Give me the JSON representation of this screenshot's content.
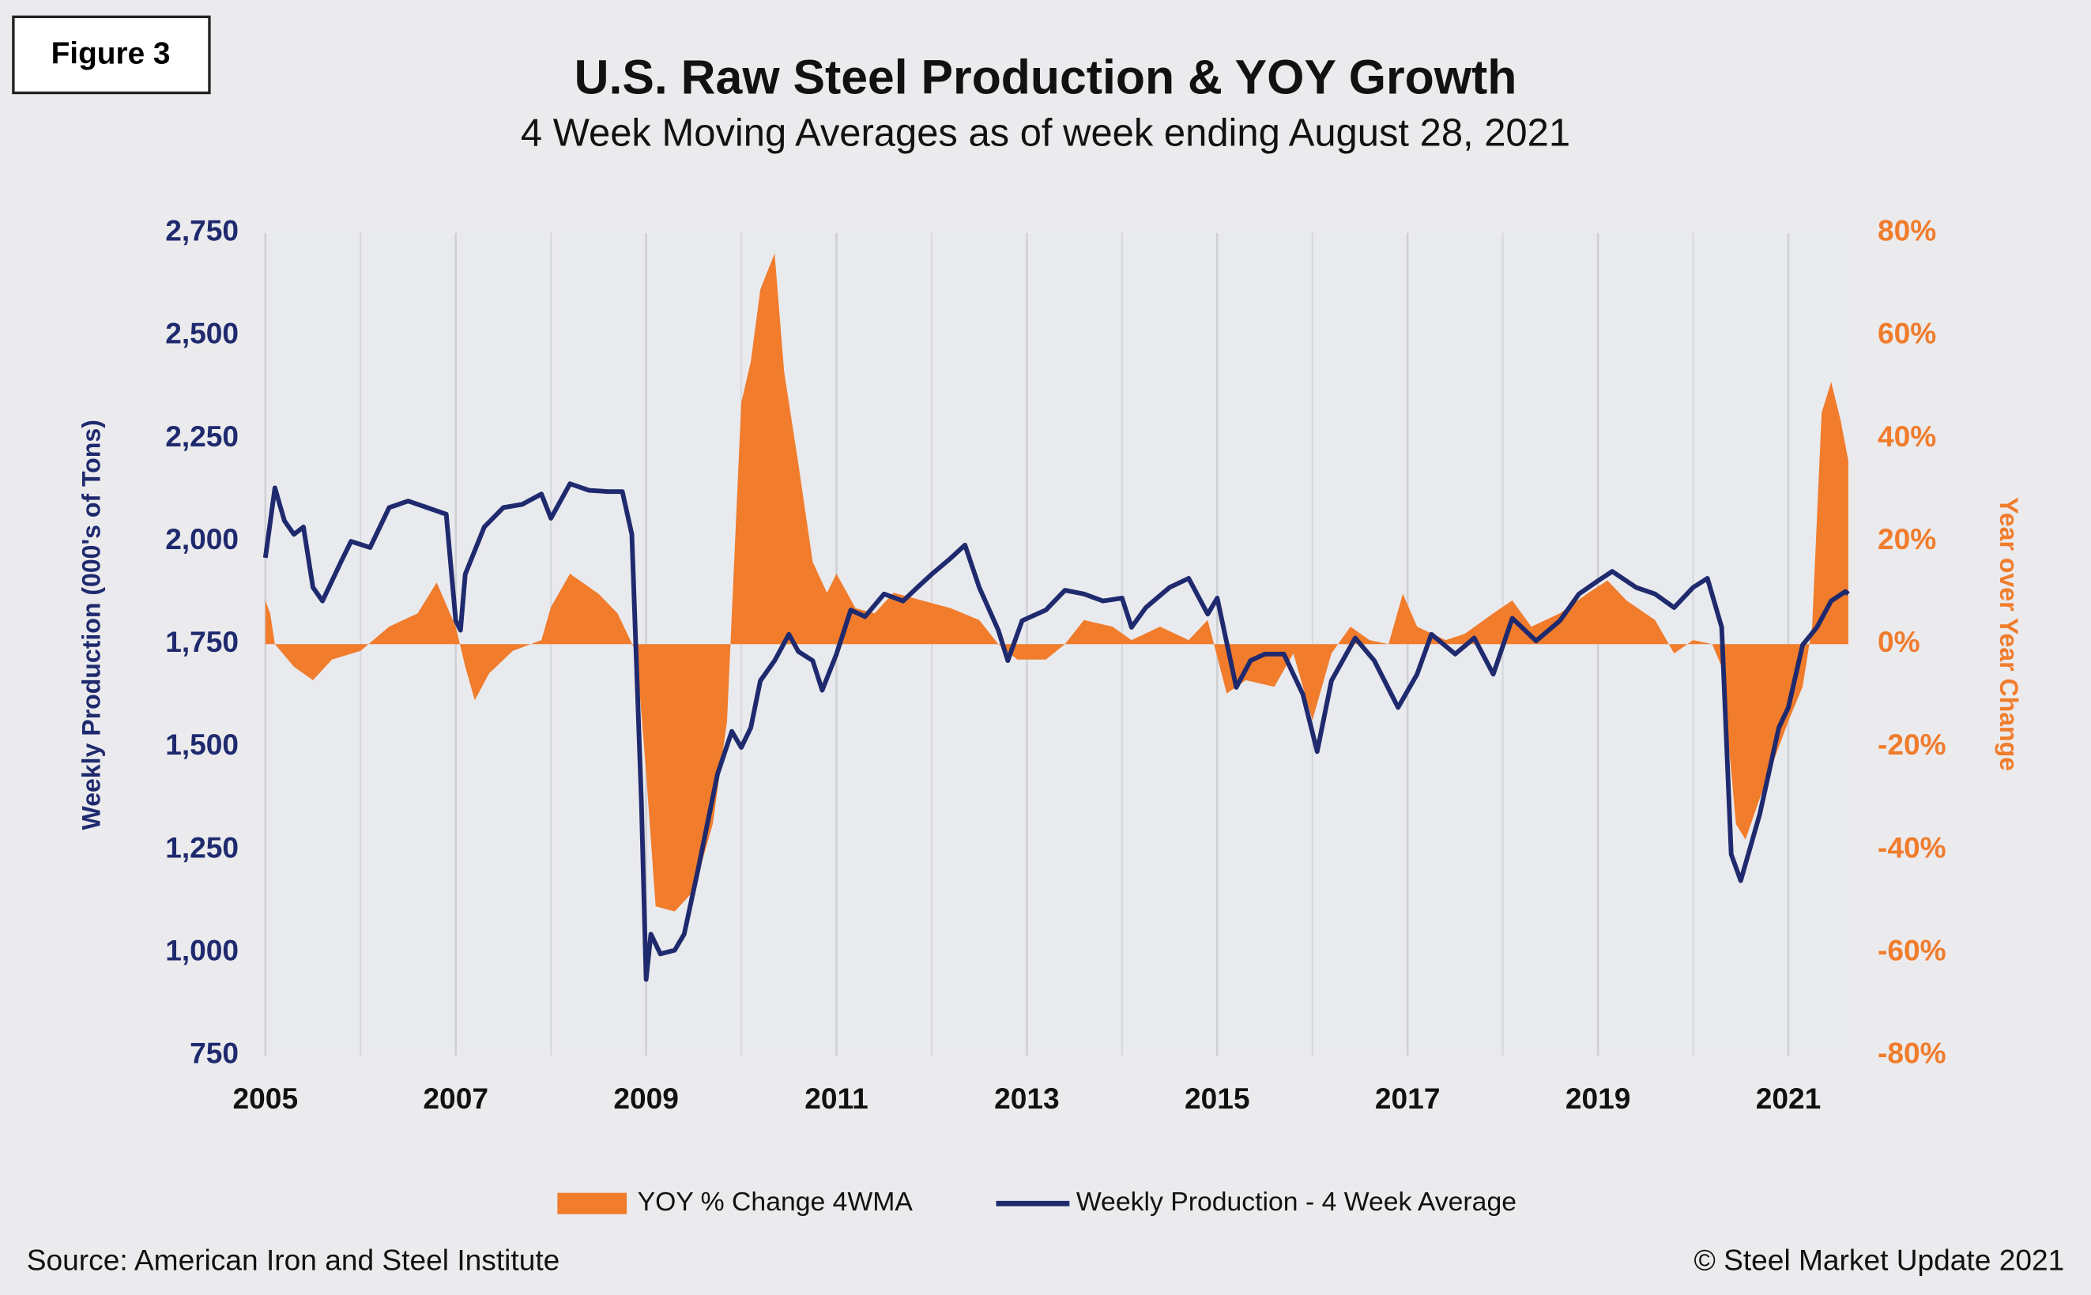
{
  "figure_label": "Figure 3",
  "chart_data": {
    "type": "area-line",
    "title": "U.S. Raw Steel Production & YOY Growth",
    "subtitle": "4 Week Moving Averages as of week ending August 28, 2021",
    "y_label": "Weekly Production (000's of Tons)",
    "y2_label": "Year over Year Change",
    "xlim": [
      2005,
      2021.63
    ],
    "xticks": [
      2005,
      2007,
      2009,
      2011,
      2013,
      2015,
      2017,
      2019,
      2021
    ],
    "ylim": [
      750,
      2750
    ],
    "yticks": [
      750,
      {
        "value": 1000,
        "label": "1,000"
      },
      {
        "value": 1250,
        "label": "1,250"
      },
      {
        "value": 1500,
        "label": "1,500"
      },
      {
        "value": 1750,
        "label": "1,750"
      },
      {
        "value": 2000,
        "label": "2,000"
      },
      {
        "value": 2250,
        "label": "2,250"
      },
      {
        "value": 2500,
        "label": "2,500"
      },
      {
        "value": 2750,
        "label": "2,750"
      }
    ],
    "y2lim": [
      -80,
      80
    ],
    "y2ticks": [
      {
        "value": -80,
        "label": "-80%"
      },
      {
        "value": -60,
        "label": "-60%"
      },
      {
        "value": -40,
        "label": "-40%"
      },
      {
        "value": -20,
        "label": "-20%"
      },
      {
        "value": 0,
        "label": "0%"
      },
      {
        "value": 20,
        "label": "20%"
      },
      {
        "value": 40,
        "label": "40%"
      },
      {
        "value": 60,
        "label": "60%"
      },
      {
        "value": 80,
        "label": "80%"
      }
    ],
    "grid": "x",
    "legend": "bottom",
    "series": [
      {
        "name": "YOY % Change 4WMA",
        "color": "#f07c2c",
        "axis": "y2",
        "kind": "area",
        "x": [
          2005,
          2005.05,
          2005.1,
          2005.3,
          2005.5,
          2005.7,
          2006.0,
          2006.3,
          2006.6,
          2006.8,
          2007.0,
          2007.1,
          2007.2,
          2007.35,
          2007.6,
          2007.9,
          2008.0,
          2008.2,
          2008.5,
          2008.7,
          2008.9,
          2009.0,
          2009.1,
          2009.3,
          2009.5,
          2009.7,
          2009.85,
          2010.0,
          2010.1,
          2010.2,
          2010.35,
          2010.45,
          2010.6,
          2010.75,
          2010.9,
          2011.0,
          2011.2,
          2011.4,
          2011.6,
          2011.9,
          2012.2,
          2012.5,
          2012.7,
          2012.9,
          2013.2,
          2013.4,
          2013.6,
          2013.9,
          2014.1,
          2014.4,
          2014.7,
          2014.9,
          2015.1,
          2015.3,
          2015.6,
          2015.8,
          2016.0,
          2016.2,
          2016.4,
          2016.6,
          2016.8,
          2016.95,
          2017.1,
          2017.4,
          2017.6,
          2017.9,
          2018.1,
          2018.3,
          2018.6,
          2018.9,
          2019.1,
          2019.3,
          2019.6,
          2019.8,
          2020.0,
          2020.2,
          2020.3,
          2020.45,
          2020.55,
          2020.7,
          2020.9,
          2021.0,
          2021.15,
          2021.25,
          2021.35,
          2021.45,
          2021.55,
          2021.63
        ],
        "values": [
          8.5,
          6,
          0,
          -4.4,
          -7,
          -3,
          -1.3,
          3.4,
          6,
          12,
          3.4,
          -4.4,
          -10.9,
          -5.7,
          -1.3,
          0.8,
          7.2,
          13.7,
          9.8,
          6,
          -1.8,
          -25,
          -51,
          -52,
          -48,
          -35,
          -15,
          47,
          55,
          69,
          76,
          53,
          35,
          16,
          10,
          13.7,
          7,
          6,
          10,
          8.5,
          7,
          4.7,
          0,
          -3,
          -3,
          0,
          4.7,
          3.4,
          0.8,
          3.4,
          0.8,
          4.7,
          -9.6,
          -7,
          -8.3,
          -1.8,
          -14.8,
          -1.8,
          3.4,
          0.8,
          0,
          9.8,
          3.4,
          0.8,
          2,
          6,
          8.5,
          3.4,
          6,
          10,
          12.4,
          8.5,
          4.7,
          -1.8,
          0.8,
          0,
          -4.4,
          -35,
          -38,
          -30,
          -20,
          -15,
          -8.3,
          3.4,
          45,
          51,
          43.5,
          35.7
        ]
      },
      {
        "name": "Weekly Production - 4 Week Average",
        "color": "#1f2a6e",
        "axis": "y",
        "kind": "line",
        "x": [
          2005,
          2005.1,
          2005.2,
          2005.3,
          2005.4,
          2005.5,
          2005.6,
          2005.8,
          2005.9,
          2006.1,
          2006.3,
          2006.5,
          2006.7,
          2006.9,
          2007.0,
          2007.05,
          2007.1,
          2007.3,
          2007.5,
          2007.7,
          2007.9,
          2008.0,
          2008.2,
          2008.4,
          2008.6,
          2008.75,
          2008.85,
          2008.95,
          2009.0,
          2009.05,
          2009.15,
          2009.3,
          2009.4,
          2009.55,
          2009.75,
          2009.9,
          2010.0,
          2010.1,
          2010.2,
          2010.35,
          2010.5,
          2010.6,
          2010.75,
          2010.85,
          2011.0,
          2011.15,
          2011.3,
          2011.5,
          2011.7,
          2011.85,
          2012.0,
          2012.2,
          2012.35,
          2012.5,
          2012.7,
          2012.8,
          2012.95,
          2013.2,
          2013.4,
          2013.6,
          2013.8,
          2014.0,
          2014.1,
          2014.25,
          2014.5,
          2014.7,
          2014.9,
          2015.0,
          2015.2,
          2015.35,
          2015.5,
          2015.7,
          2015.9,
          2016.05,
          2016.2,
          2016.45,
          2016.65,
          2016.9,
          2017.1,
          2017.25,
          2017.5,
          2017.7,
          2017.9,
          2018.1,
          2018.35,
          2018.6,
          2018.8,
          2019.0,
          2019.15,
          2019.4,
          2019.6,
          2019.8,
          2020.0,
          2020.15,
          2020.3,
          2020.4,
          2020.5,
          2020.7,
          2020.9,
          2021.0,
          2021.15,
          2021.3,
          2021.45,
          2021.6,
          2021.63
        ],
        "values": [
          1960,
          2130,
          2050,
          2017,
          2035,
          1888,
          1855,
          1953,
          2000,
          1985,
          2082,
          2098,
          2082,
          2066,
          1807,
          1784,
          1920,
          2035,
          2082,
          2090,
          2115,
          2056,
          2140,
          2124,
          2121,
          2121,
          2017,
          1370,
          935,
          1045,
          997,
          1006,
          1045,
          1207,
          1434,
          1538,
          1499,
          1547,
          1661,
          1710,
          1774,
          1732,
          1710,
          1638,
          1726,
          1833,
          1817,
          1872,
          1855,
          1888,
          1920,
          1959,
          1991,
          1888,
          1784,
          1710,
          1807,
          1833,
          1881,
          1872,
          1855,
          1862,
          1791,
          1839,
          1888,
          1910,
          1823,
          1862,
          1645,
          1710,
          1726,
          1726,
          1628,
          1489,
          1661,
          1765,
          1710,
          1596,
          1677,
          1774,
          1726,
          1765,
          1677,
          1813,
          1758,
          1807,
          1872,
          1904,
          1927,
          1888,
          1872,
          1839,
          1888,
          1910,
          1791,
          1239,
          1175,
          1337,
          1547,
          1596,
          1748,
          1791,
          1855,
          1878,
          1872
        ]
      }
    ],
    "source": "Source: American Iron and Steel Institute",
    "copyright": "© Steel Market Update 2021"
  }
}
